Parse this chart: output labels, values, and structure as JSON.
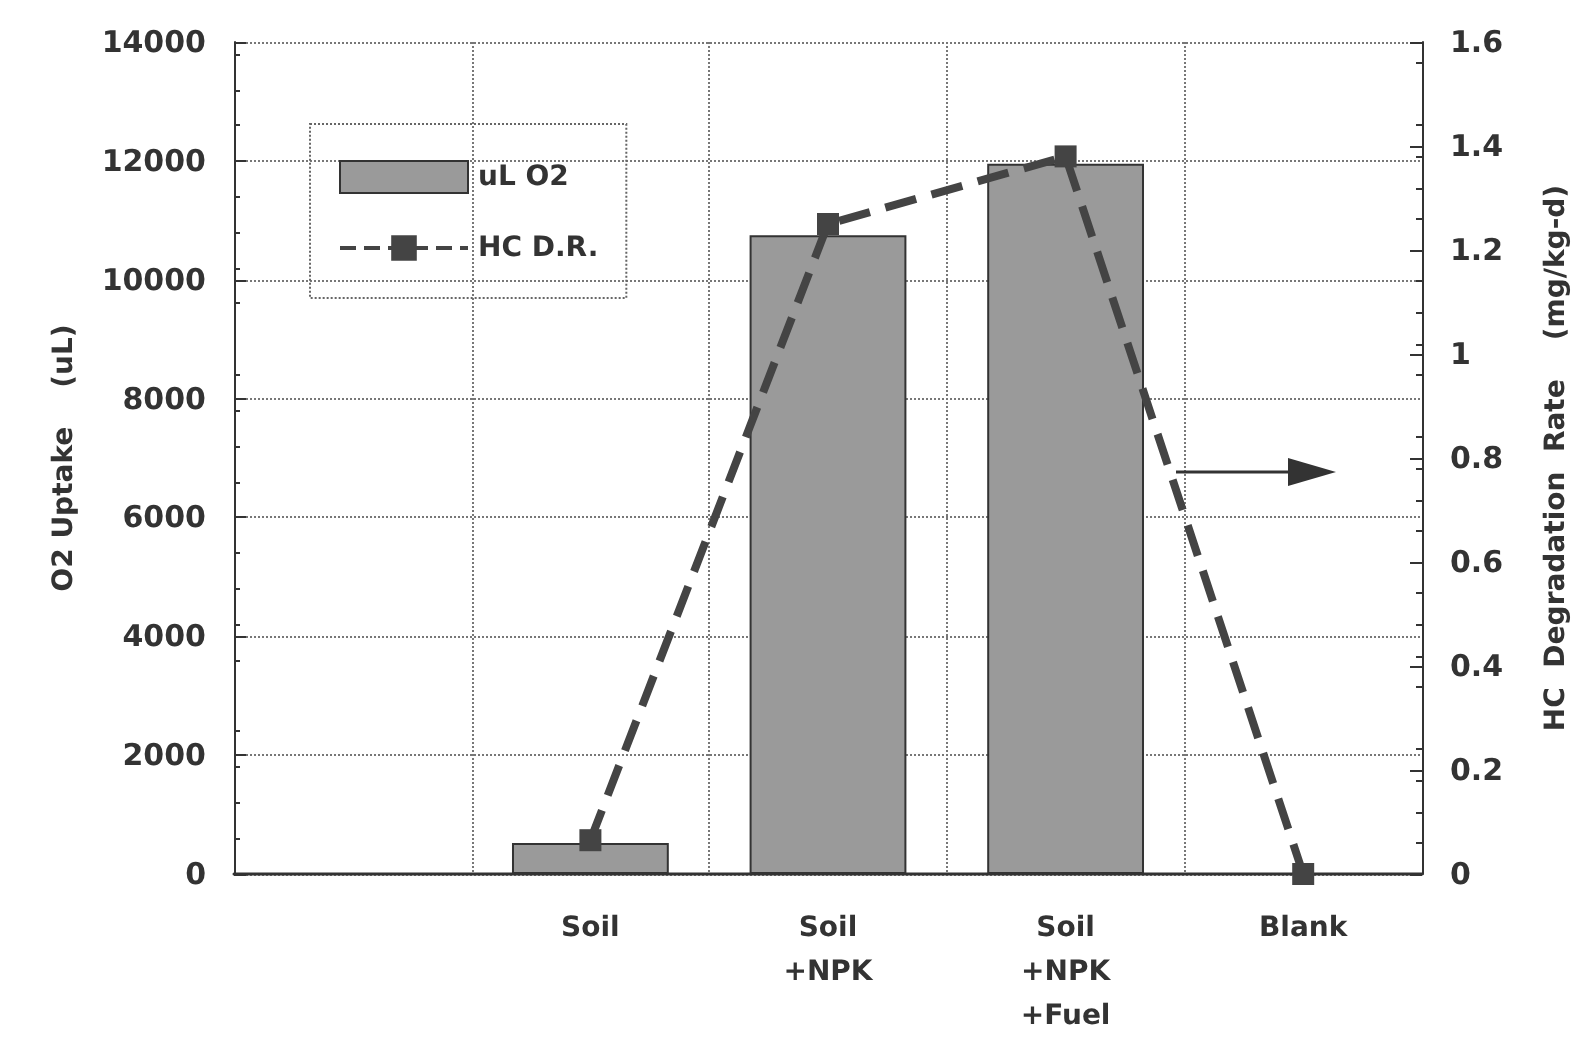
{
  "chart_data": {
    "type": "bar",
    "ylabel": "O2 Uptake    (uL)",
    "y2label": "HC  Degradation  Rate    (mg/kg-d)",
    "categories": [
      null,
      "Soil",
      "Soil\n+NPK",
      "Soil\n+NPK\n+Fuel",
      "Blank"
    ],
    "series": [
      {
        "name": "uL O2",
        "type": "bar",
        "color": "#9a9a9a",
        "values": [
          null,
          520,
          10750,
          11950,
          null
        ]
      },
      {
        "name": "HC D.R.",
        "type": "line",
        "axis": "y2",
        "color": "#444444",
        "marker": "square",
        "line_style": "dashed",
        "values": [
          null,
          0.065,
          1.25,
          1.38,
          0
        ]
      }
    ],
    "ylim": [
      0,
      14000
    ],
    "yticks": [
      0,
      2000,
      4000,
      6000,
      8000,
      10000,
      12000,
      14000
    ],
    "y2lim": [
      0,
      1.6
    ],
    "y2ticks": [
      0,
      0.2,
      0.4,
      0.6,
      0.8,
      1,
      1.2,
      1.4,
      1.6
    ],
    "grid": true,
    "legend": "top left"
  }
}
